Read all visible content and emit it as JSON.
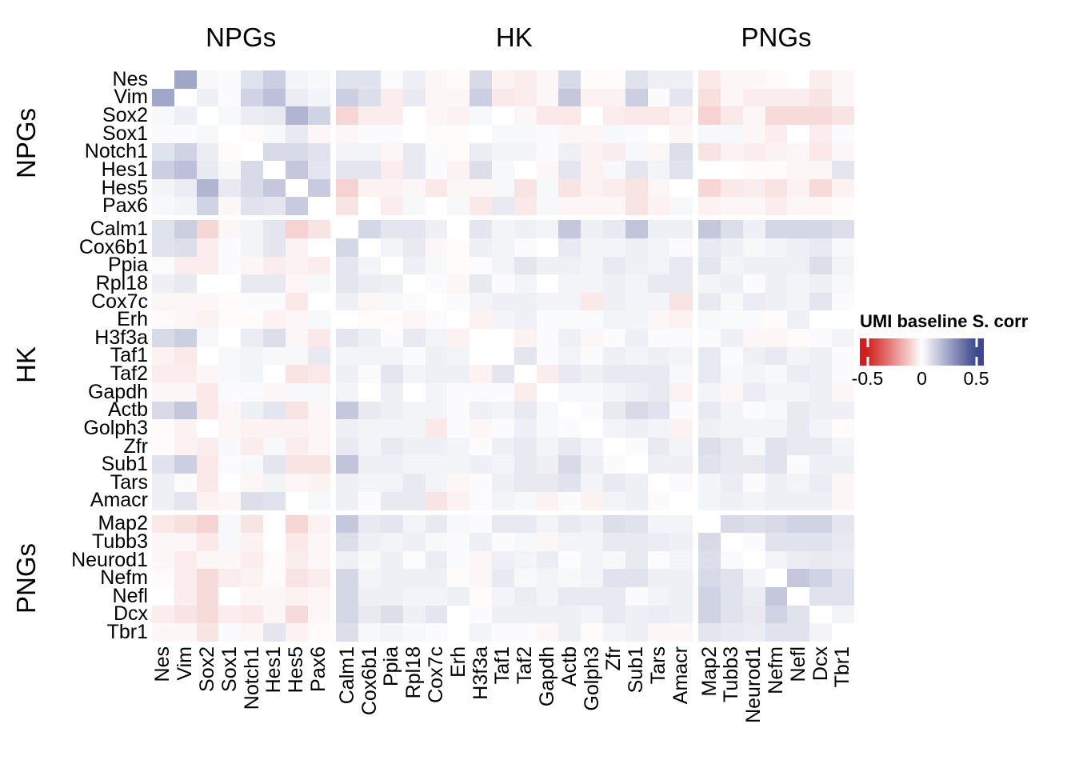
{
  "legend": {
    "title": "UMI baseline S. corr",
    "tick_values": [
      -0.5,
      0,
      0.5
    ],
    "tick_labels": [
      "-0.5",
      "0",
      "0.5"
    ],
    "color_negative_end": "#d0201c",
    "color_positive_end": "#3c478c",
    "color_zero": "#ffffff"
  },
  "chart_data": {
    "type": "heatmap",
    "title": "",
    "value_name": "UMI baseline Spearman correlation",
    "value_range": [
      -0.5,
      0.5
    ],
    "grid": false,
    "legend_position": "right",
    "groups": [
      {
        "label": "NPGs",
        "count": 8
      },
      {
        "label": "HK",
        "count": 16
      },
      {
        "label": "PNGs",
        "count": 7
      }
    ],
    "genes": [
      "Nes",
      "Vim",
      "Sox2",
      "Sox1",
      "Notch1",
      "Hes1",
      "Hes5",
      "Pax6",
      "Calm1",
      "Cox6b1",
      "Ppia",
      "Rpl18",
      "Cox7c",
      "Erh",
      "H3f3a",
      "Taf1",
      "Taf2",
      "Gapdh",
      "Actb",
      "Golph3",
      "Zfr",
      "Sub1",
      "Tars",
      "Amacr",
      "Map2",
      "Tubb3",
      "Neurod1",
      "Nefm",
      "Nefl",
      "Dcx",
      "Tbr1"
    ],
    "matrix": [
      [
        0,
        0.24,
        0.02,
        0.01,
        0.08,
        0.13,
        0.03,
        0.02,
        0.08,
        0.08,
        0.01,
        0.04,
        -0.02,
        -0.01,
        0.1,
        -0.03,
        -0.04,
        -0.02,
        0.1,
        -0.01,
        -0.01,
        0.08,
        0.04,
        0.04,
        -0.05,
        -0.02,
        -0.02,
        -0.01,
        0,
        -0.04,
        -0.02
      ],
      [
        0.24,
        0,
        0.04,
        0.01,
        0.12,
        0.17,
        0.05,
        0.03,
        0.13,
        0.09,
        -0.04,
        0.06,
        -0.02,
        -0.02,
        0.13,
        -0.05,
        -0.04,
        -0.02,
        0.15,
        -0.03,
        -0.03,
        0.13,
        0.01,
        0.07,
        -0.07,
        -0.02,
        -0.04,
        -0.04,
        -0.04,
        -0.06,
        -0.02
      ],
      [
        0.02,
        0.04,
        0,
        0.02,
        0.05,
        0.06,
        0.2,
        0.12,
        -0.09,
        -0.04,
        -0.04,
        0,
        -0.02,
        -0.03,
        0.02,
        0,
        -0.02,
        -0.05,
        -0.05,
        0,
        -0.04,
        -0.05,
        -0.05,
        -0.03,
        -0.1,
        -0.05,
        -0.02,
        -0.08,
        -0.08,
        -0.08,
        -0.06
      ],
      [
        0.01,
        0.01,
        0.02,
        0,
        -0.01,
        0.02,
        0.06,
        -0.02,
        -0.02,
        0.01,
        0.01,
        0,
        -0.01,
        -0.01,
        0,
        0.02,
        0.02,
        0.01,
        -0.02,
        -0.02,
        0.02,
        0.01,
        0,
        -0.02,
        0.02,
        0.02,
        -0.02,
        -0.04,
        0,
        -0.04,
        0.01
      ],
      [
        0.08,
        0.12,
        0.05,
        -0.01,
        0,
        0.1,
        0.1,
        0.08,
        0.03,
        0.03,
        -0.02,
        0.06,
        0.01,
        -0.01,
        0.05,
        0.03,
        0.03,
        0.01,
        0.04,
        -0.03,
        -0.04,
        0.02,
        -0.02,
        0.09,
        -0.06,
        -0.03,
        -0.04,
        -0.03,
        -0.02,
        -0.05,
        -0.02
      ],
      [
        0.13,
        0.17,
        0.06,
        0.02,
        0.1,
        0,
        0.15,
        0.07,
        0.07,
        0.07,
        -0.04,
        0.06,
        0.01,
        -0.03,
        0.09,
        0.02,
        0,
        -0.02,
        0.07,
        -0.03,
        0.02,
        0.07,
        0.03,
        0.08,
        0,
        0,
        -0.01,
        -0.01,
        -0.02,
        -0.02,
        0.07
      ],
      [
        0.03,
        0.05,
        0.2,
        0.06,
        0.1,
        0.15,
        0,
        0.14,
        -0.1,
        -0.03,
        -0.03,
        -0.02,
        -0.05,
        -0.02,
        -0.02,
        0.02,
        -0.06,
        0.02,
        -0.06,
        -0.03,
        -0.04,
        -0.06,
        -0.02,
        0,
        -0.09,
        -0.05,
        -0.04,
        -0.06,
        -0.03,
        -0.08,
        -0.03
      ],
      [
        0.02,
        0.03,
        0.12,
        -0.02,
        0.08,
        0.07,
        0.14,
        0,
        -0.06,
        0,
        -0.04,
        0.02,
        0,
        0.02,
        -0.05,
        0.06,
        -0.05,
        0.02,
        -0.02,
        -0.02,
        -0.02,
        -0.06,
        -0.03,
        0.02,
        -0.03,
        -0.02,
        -0.02,
        -0.04,
        -0.02,
        -0.02,
        -0.01
      ],
      [
        0.08,
        0.13,
        -0.09,
        -0.02,
        0.03,
        0.07,
        -0.1,
        -0.06,
        0,
        0.11,
        0.07,
        0.07,
        0.04,
        0,
        0.07,
        0.03,
        0.04,
        0.03,
        0.15,
        0.04,
        0.06,
        0.16,
        0.04,
        0.04,
        0.15,
        0.09,
        0.04,
        0.11,
        0.11,
        0.11,
        0.09
      ],
      [
        0.08,
        0.09,
        -0.04,
        0.01,
        0.03,
        0.07,
        -0.03,
        0,
        0.11,
        0,
        0.03,
        0.06,
        -0.02,
        -0.01,
        0.04,
        0.03,
        0.01,
        0,
        0.06,
        0.03,
        0.03,
        0.04,
        0.03,
        0.01,
        0.06,
        0.04,
        0.02,
        0.03,
        0.04,
        0.06,
        0.02
      ],
      [
        0.01,
        -0.04,
        -0.04,
        0.01,
        -0.02,
        -0.04,
        -0.03,
        -0.04,
        0.07,
        0.03,
        0,
        0.04,
        0.02,
        -0.01,
        0.01,
        0.03,
        0.07,
        0.04,
        0.04,
        0.03,
        0.06,
        0.04,
        0.03,
        0.06,
        0.07,
        0.03,
        0.04,
        0.04,
        0.04,
        0.09,
        0.03
      ],
      [
        0.04,
        0.06,
        0,
        0,
        0.06,
        0.06,
        -0.02,
        0.02,
        0.07,
        0.05,
        0.04,
        0,
        0.01,
        -0.02,
        0.06,
        0.01,
        0.03,
        0,
        0.03,
        0.03,
        0.04,
        0.03,
        0.06,
        0.06,
        0.03,
        0.04,
        0.01,
        0.04,
        0.03,
        0.04,
        0.02
      ],
      [
        -0.02,
        -0.02,
        -0.02,
        -0.01,
        0.01,
        0.01,
        -0.05,
        0,
        0.04,
        -0.02,
        0.02,
        0.01,
        0,
        0.01,
        0.03,
        0.04,
        0.04,
        0.03,
        0.03,
        -0.05,
        0.04,
        0.03,
        0.03,
        -0.06,
        0.06,
        0.02,
        0.05,
        0.04,
        0.03,
        0.07,
        0.01
      ],
      [
        -0.01,
        -0.02,
        -0.03,
        -0.01,
        -0.01,
        -0.03,
        -0.02,
        0.02,
        0,
        -0.01,
        -0.01,
        -0.02,
        0.01,
        0,
        -0.03,
        0.03,
        0.04,
        0.01,
        0.01,
        0.01,
        0.03,
        0.03,
        -0.02,
        -0.03,
        0.02,
        0.01,
        0.01,
        -0.01,
        0.04,
        0,
        0
      ],
      [
        0.1,
        0.13,
        0.02,
        0,
        0.05,
        0.09,
        -0.02,
        -0.05,
        0.07,
        0.04,
        0.01,
        0.06,
        0.03,
        -0.03,
        0,
        0,
        -0.03,
        0.01,
        0.04,
        -0.02,
        0.01,
        0.04,
        0.01,
        0.01,
        0.01,
        0.04,
        -0.02,
        -0.02,
        -0.01,
        0.01,
        0.03
      ],
      [
        -0.03,
        -0.05,
        0,
        0.02,
        0.03,
        0.02,
        0.02,
        0.06,
        0.03,
        0.03,
        0.03,
        0.01,
        0.04,
        0.03,
        0,
        0,
        0.07,
        0.01,
        0.03,
        0.01,
        0.04,
        0.03,
        0.04,
        0.03,
        0.06,
        0.01,
        0.04,
        0.06,
        0.03,
        0.04,
        0.01
      ],
      [
        -0.04,
        -0.04,
        -0.02,
        0.02,
        0.03,
        0,
        -0.06,
        -0.05,
        0.04,
        0.01,
        0.07,
        0.03,
        0.04,
        0.04,
        -0.03,
        0.07,
        0,
        -0.04,
        0.06,
        0.04,
        0.06,
        0.06,
        0.06,
        0.02,
        0.06,
        0.02,
        0.03,
        0.02,
        0.05,
        0.04,
        0.01
      ],
      [
        -0.02,
        -0.02,
        -0.05,
        0.01,
        0.01,
        -0.02,
        0.02,
        0.02,
        0.03,
        0,
        0.04,
        0,
        0.03,
        0.01,
        0.01,
        0.01,
        -0.04,
        0,
        0.02,
        0.02,
        0.03,
        0.04,
        0.06,
        -0.03,
        0.03,
        -0.02,
        0.05,
        0.03,
        0.03,
        0.04,
        -0.02
      ],
      [
        0.1,
        0.15,
        -0.05,
        -0.02,
        0.04,
        0.07,
        -0.06,
        -0.02,
        0.15,
        0.06,
        0.04,
        0.03,
        0.03,
        0.01,
        0.04,
        0.03,
        0.06,
        0.02,
        0,
        0.01,
        0.06,
        0.1,
        0.08,
        0.01,
        0.06,
        0.03,
        0.01,
        0.02,
        0.06,
        0.04,
        0.04
      ],
      [
        -0.01,
        -0.03,
        0,
        -0.02,
        -0.03,
        -0.03,
        -0.03,
        -0.02,
        0.04,
        0.03,
        0.03,
        0.03,
        -0.05,
        0.01,
        -0.02,
        0.01,
        0.04,
        0.02,
        0.01,
        0,
        0.03,
        0.04,
        0.03,
        -0.03,
        0.04,
        0.03,
        0.03,
        0.03,
        0.06,
        0.03,
        -0.01
      ],
      [
        -0.01,
        -0.03,
        -0.04,
        0.02,
        -0.04,
        0.02,
        -0.04,
        -0.02,
        0.06,
        0.03,
        0.06,
        0.04,
        0.04,
        0.03,
        0.01,
        0.04,
        0.06,
        0.03,
        0.06,
        0.03,
        0,
        0.01,
        0.06,
        0.03,
        0.09,
        0.06,
        0.02,
        0.08,
        0.06,
        0.06,
        0.03
      ],
      [
        0.08,
        0.13,
        -0.05,
        0.01,
        0.02,
        0.07,
        -0.06,
        -0.06,
        0.16,
        0.04,
        0.04,
        0.03,
        0.03,
        0.03,
        0.04,
        0.03,
        0.06,
        0.04,
        0.1,
        0.04,
        0.01,
        0,
        0.04,
        0.04,
        0.08,
        0.06,
        0.06,
        0.08,
        0.01,
        0.04,
        0.04
      ],
      [
        0.04,
        0.01,
        -0.05,
        0,
        -0.02,
        0.03,
        -0.02,
        -0.03,
        0.04,
        0.03,
        0.03,
        0.06,
        0.03,
        -0.02,
        0.01,
        0.04,
        0.06,
        0.06,
        0.08,
        0.03,
        0.06,
        0.04,
        0,
        0.01,
        0.03,
        0.05,
        0.01,
        0.04,
        0.03,
        0.05,
        -0.02
      ],
      [
        0.04,
        0.07,
        -0.03,
        -0.02,
        0.09,
        0.08,
        0,
        0.02,
        0.04,
        0.01,
        0.06,
        0.06,
        -0.06,
        -0.03,
        0.01,
        0.03,
        0.02,
        -0.03,
        0.01,
        -0.03,
        0.03,
        0.04,
        0.01,
        0,
        0.03,
        0.04,
        0.03,
        0.04,
        0.04,
        0.04,
        -0.02
      ],
      [
        -0.05,
        -0.07,
        -0.1,
        0.02,
        -0.06,
        0,
        -0.09,
        -0.03,
        0.15,
        0.06,
        0.07,
        0.03,
        0.06,
        0.02,
        0.01,
        0.06,
        0.06,
        0.03,
        0.06,
        0.04,
        0.09,
        0.08,
        0.03,
        0.03,
        0,
        0.1,
        0.09,
        0.1,
        0.12,
        0.12,
        0.07
      ],
      [
        -0.02,
        -0.02,
        -0.05,
        0.02,
        -0.03,
        0,
        -0.05,
        -0.02,
        0.09,
        0.04,
        0.03,
        0.04,
        0.02,
        0.01,
        0.04,
        0.01,
        0.02,
        -0.02,
        0.03,
        0.03,
        0.06,
        0.06,
        0.05,
        0.04,
        0.1,
        0,
        0.01,
        0.08,
        0.08,
        0.08,
        0.06
      ],
      [
        -0.02,
        -0.04,
        -0.02,
        -0.02,
        -0.04,
        -0.01,
        -0.04,
        -0.02,
        0.04,
        0.02,
        0.04,
        0.01,
        0.05,
        0.01,
        -0.02,
        0.04,
        0.03,
        0.05,
        0.01,
        0.03,
        0.02,
        0.06,
        0.01,
        0.03,
        0.09,
        0.01,
        0,
        0.03,
        0.05,
        0.06,
        0.05
      ],
      [
        -0.01,
        -0.04,
        -0.08,
        -0.04,
        -0.03,
        -0.01,
        -0.06,
        -0.04,
        0.11,
        0.03,
        0.04,
        0.04,
        0.04,
        -0.01,
        -0.02,
        0.06,
        0.02,
        0.03,
        0.02,
        0.03,
        0.08,
        0.08,
        0.04,
        0.04,
        0.1,
        0.08,
        0.03,
        0,
        0.15,
        0.12,
        0.08
      ],
      [
        0,
        -0.04,
        -0.08,
        0,
        -0.02,
        -0.02,
        -0.03,
        -0.02,
        0.11,
        0.04,
        0.04,
        0.03,
        0.03,
        0.04,
        -0.01,
        0.03,
        0.05,
        0.03,
        0.06,
        0.06,
        0.06,
        0.01,
        0.03,
        0.04,
        0.12,
        0.08,
        0.05,
        0.15,
        0,
        0.08,
        0.08
      ],
      [
        -0.04,
        -0.06,
        -0.08,
        -0.04,
        -0.05,
        -0.02,
        -0.08,
        -0.02,
        0.11,
        0.06,
        0.09,
        0.04,
        0.07,
        0,
        0.01,
        0.04,
        0.04,
        0.04,
        0.04,
        0.03,
        0.06,
        0.04,
        0.05,
        0.04,
        0.12,
        0.08,
        0.06,
        0.12,
        0.08,
        0,
        0.03
      ],
      [
        -0.02,
        -0.02,
        -0.06,
        0.01,
        -0.02,
        0.07,
        -0.03,
        -0.01,
        0.09,
        0.02,
        0.03,
        0.02,
        0.01,
        0,
        0.03,
        0.01,
        0.01,
        -0.02,
        0.04,
        -0.01,
        0.03,
        0.04,
        -0.02,
        -0.02,
        0.07,
        0.06,
        0.05,
        0.08,
        0.08,
        0.03,
        0
      ]
    ]
  }
}
